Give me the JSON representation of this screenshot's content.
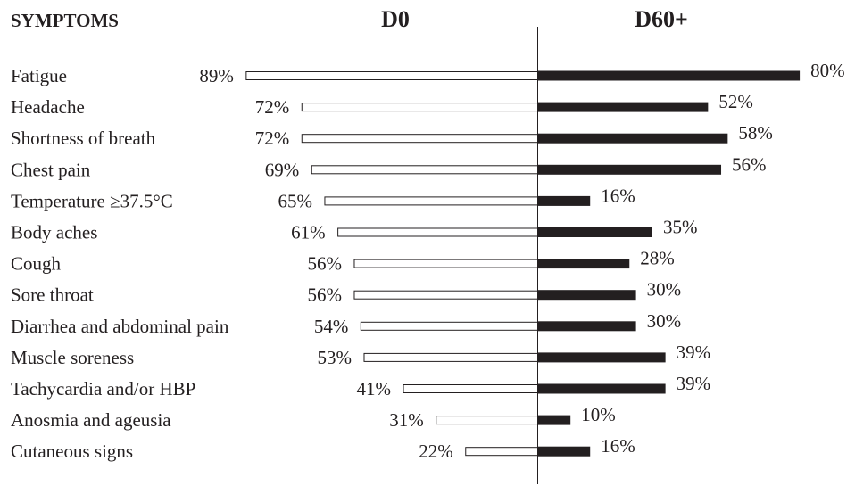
{
  "chart_data": {
    "type": "bar",
    "orientation": "horizontal-diverging",
    "headers": {
      "category": "SYMPTOMS",
      "left": "D0",
      "right": "D60+"
    },
    "categories": [
      "Fatigue",
      "Headache",
      "Shortness of breath",
      "Chest pain",
      "Temperature ≥37.5°C",
      "Body aches",
      "Cough",
      "Sore throat",
      "Diarrhea and abdominal pain",
      "Muscle soreness",
      "Tachycardia and/or HBP",
      "Anosmia and ageusia",
      "Cutaneous signs"
    ],
    "series": [
      {
        "key": "D0",
        "side": "left",
        "style": "outline",
        "color": "#ffffff",
        "values": [
          89,
          72,
          72,
          69,
          65,
          61,
          56,
          56,
          54,
          53,
          41,
          31,
          22
        ],
        "labels": [
          "89%",
          "72%",
          "72%",
          "69%",
          "65%",
          "61%",
          "56%",
          "56%",
          "54%",
          "53%",
          "41%",
          "31%",
          "22%"
        ]
      },
      {
        "key": "D60+",
        "side": "right",
        "style": "filled",
        "color": "#231f20",
        "values": [
          80,
          52,
          58,
          56,
          16,
          35,
          28,
          30,
          30,
          39,
          39,
          10,
          16
        ],
        "labels": [
          "80%",
          "52%",
          "58%",
          "56%",
          "16%",
          "35%",
          "28%",
          "30%",
          "30%",
          "39%",
          "39%",
          "10%",
          "16%"
        ]
      }
    ],
    "value_unit": "%",
    "grid": false,
    "legend": "none"
  }
}
